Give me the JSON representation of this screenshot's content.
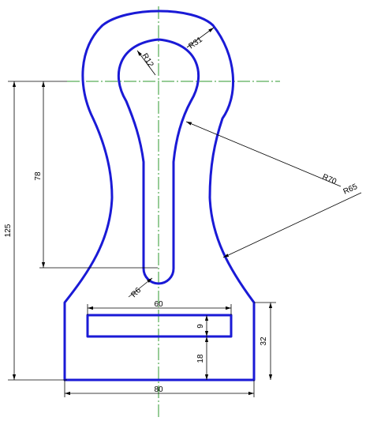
{
  "colors": {
    "outline": "#1a1ad6",
    "centerline": "#2f9a2f",
    "dimension": "#000000",
    "background": "#ffffff"
  },
  "dimensions": {
    "r31": "R31",
    "r12": "R12",
    "r70": "R70",
    "r65": "R65",
    "r6": "R6",
    "d78": "78",
    "d125": "125",
    "d60": "60",
    "d9": "9",
    "d18": "18",
    "d32": "32",
    "d80": "80"
  }
}
